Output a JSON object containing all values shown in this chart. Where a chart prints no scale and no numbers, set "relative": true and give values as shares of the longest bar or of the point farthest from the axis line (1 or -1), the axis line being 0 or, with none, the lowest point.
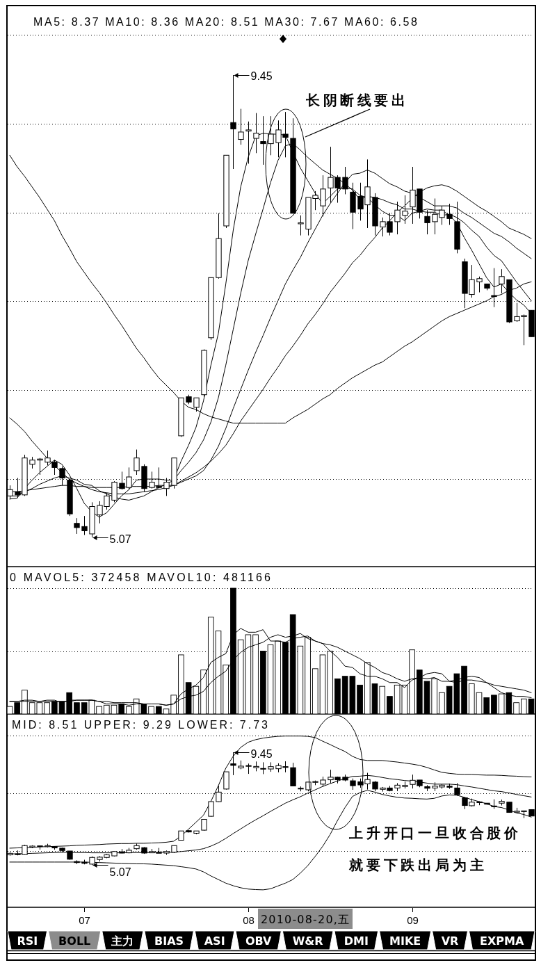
{
  "chart_data": [
    {
      "type": "candlestick",
      "title": "MA5: 8.37 MA10: 8.36 MA20: 8.51 MA30: 7.67 MA60: 6.58",
      "categories": [
        null,
        null,
        null,
        null,
        null,
        null,
        null,
        null,
        null,
        null,
        "07",
        null,
        null,
        null,
        null,
        null,
        null,
        null,
        null,
        null,
        null,
        null,
        null,
        null,
        null,
        null,
        null,
        null,
        null,
        null,
        null,
        null,
        "08",
        null,
        null,
        null,
        null,
        null,
        null,
        null,
        null,
        null,
        null,
        null,
        null,
        null,
        null,
        null,
        null,
        null,
        null,
        null,
        null,
        null,
        "09",
        null,
        null,
        null,
        null,
        null,
        null,
        null,
        null,
        null,
        null,
        null,
        null,
        null,
        null,
        null,
        null
      ],
      "ohlc": [
        [
          5.46,
          5.56,
          5.43,
          5.52
        ],
        [
          5.5,
          5.63,
          5.44,
          5.47
        ],
        [
          5.47,
          5.85,
          5.46,
          5.82
        ],
        [
          5.76,
          5.83,
          5.72,
          5.8
        ],
        [
          5.8,
          5.82,
          5.66,
          5.81
        ],
        [
          5.78,
          5.89,
          5.75,
          5.82
        ],
        [
          5.78,
          5.8,
          5.66,
          5.73
        ],
        [
          5.72,
          5.74,
          5.56,
          5.63
        ],
        [
          5.61,
          5.61,
          5.27,
          5.29
        ],
        [
          5.2,
          5.25,
          5.1,
          5.16
        ],
        [
          5.17,
          5.27,
          5.09,
          5.13
        ],
        [
          5.1,
          5.4,
          5.07,
          5.36
        ],
        [
          5.28,
          5.41,
          5.2,
          5.37
        ],
        [
          5.36,
          5.49,
          5.33,
          5.46
        ],
        [
          5.42,
          5.6,
          5.4,
          5.59
        ],
        [
          5.58,
          5.69,
          5.52,
          5.53
        ],
        [
          5.54,
          5.73,
          5.52,
          5.64
        ],
        [
          5.7,
          5.9,
          5.66,
          5.82
        ],
        [
          5.74,
          5.76,
          5.5,
          5.53
        ],
        [
          5.54,
          5.69,
          5.53,
          5.59
        ],
        [
          5.55,
          5.73,
          5.53,
          5.54
        ],
        [
          5.53,
          5.63,
          5.46,
          5.59
        ],
        [
          5.56,
          5.82,
          5.53,
          5.82
        ],
        [
          6.03,
          6.39,
          6.02,
          6.39
        ],
        [
          6.4,
          6.42,
          6.33,
          6.35
        ],
        [
          6.3,
          6.39,
          6.26,
          6.39
        ],
        [
          6.42,
          6.85,
          6.4,
          6.84
        ],
        [
          6.96,
          7.53,
          6.94,
          7.53
        ],
        [
          7.53,
          8.14,
          7.52,
          7.9
        ],
        [
          8.02,
          8.69,
          8.0,
          8.69
        ],
        [
          9.0,
          9.45,
          8.56,
          8.94
        ],
        [
          8.84,
          9.13,
          8.79,
          8.91
        ],
        [
          8.92,
          9.01,
          8.61,
          8.93
        ],
        [
          8.85,
          9.09,
          8.71,
          8.9
        ],
        [
          8.82,
          9.06,
          8.6,
          8.8
        ],
        [
          8.8,
          9.06,
          8.69,
          8.89
        ],
        [
          8.81,
          9.02,
          8.67,
          8.93
        ],
        [
          8.89,
          9.1,
          8.67,
          8.86
        ],
        [
          8.85,
          9.04,
          8.14,
          8.14
        ],
        [
          8.04,
          8.12,
          7.93,
          8.05
        ],
        [
          7.99,
          8.29,
          7.93,
          8.29
        ],
        [
          8.28,
          8.35,
          8.17,
          8.31
        ],
        [
          8.21,
          8.5,
          8.11,
          8.37
        ],
        [
          8.38,
          8.77,
          8.24,
          8.48
        ],
        [
          8.48,
          8.5,
          8.24,
          8.38
        ],
        [
          8.48,
          8.58,
          8.32,
          8.37
        ],
        [
          8.34,
          8.43,
          7.99,
          8.15
        ],
        [
          8.3,
          8.43,
          8.07,
          8.18
        ],
        [
          8.22,
          8.65,
          8.0,
          8.39
        ],
        [
          8.29,
          8.33,
          7.93,
          8.02
        ],
        [
          8.01,
          8.1,
          7.92,
          8.06
        ],
        [
          8.06,
          8.14,
          7.93,
          7.96
        ],
        [
          8.06,
          8.25,
          7.94,
          8.17
        ],
        [
          8.12,
          8.31,
          8.04,
          8.16
        ],
        [
          8.2,
          8.58,
          8.04,
          8.36
        ],
        [
          8.37,
          8.37,
          8.09,
          8.15
        ],
        [
          8.11,
          8.17,
          7.94,
          8.05
        ],
        [
          8.06,
          8.28,
          7.94,
          8.13
        ],
        [
          8.1,
          8.21,
          8.03,
          8.17
        ],
        [
          8.13,
          8.23,
          8.03,
          8.09
        ],
        [
          8.06,
          8.25,
          7.76,
          7.8
        ],
        [
          7.68,
          7.71,
          7.24,
          7.38
        ],
        [
          7.37,
          7.65,
          7.34,
          7.51
        ],
        [
          7.49,
          7.54,
          7.39,
          7.52
        ],
        [
          7.47,
          7.47,
          7.41,
          7.43
        ],
        [
          7.36,
          7.62,
          7.25,
          7.35
        ],
        [
          7.47,
          7.61,
          7.38,
          7.54
        ],
        [
          7.51,
          7.51,
          7.1,
          7.11
        ],
        [
          7.12,
          7.29,
          7.11,
          7.16
        ],
        [
          7.16,
          7.18,
          6.89,
          7.17
        ],
        [
          7.22,
          7.22,
          6.97,
          6.97
        ]
      ],
      "colors": [
        "#ffffff",
        "#000000",
        "#ffffff",
        "#ffffff",
        "#ffffff",
        "#ffffff",
        "#000000",
        "#000000",
        "#000000",
        "#000000",
        "#000000",
        "#ffffff",
        "#ffffff",
        "#ffffff",
        "#ffffff",
        "#000000",
        "#ffffff",
        "#ffffff",
        "#000000",
        "#ffffff",
        "#000000",
        "#ffffff",
        "#ffffff",
        "#ffffff",
        "#000000",
        "#ffffff",
        "#ffffff",
        "#ffffff",
        "#ffffff",
        "#ffffff",
        "#000000",
        "#ffffff",
        "#ffffff",
        "#ffffff",
        "#000000",
        "#ffffff",
        "#ffffff",
        "#000000",
        "#000000",
        "#ffffff",
        "#ffffff",
        "#ffffff",
        "#ffffff",
        "#ffffff",
        "#000000",
        "#000000",
        "#000000",
        "#000000",
        "#ffffff",
        "#000000",
        "#ffffff",
        "#000000",
        "#ffffff",
        "#ffffff",
        "#ffffff",
        "#000000",
        "#000000",
        "#ffffff",
        "#ffffff",
        "#000000",
        "#000000",
        "#000000",
        "#ffffff",
        "#ffffff",
        "#000000",
        "#000000",
        "#ffffff",
        "#000000",
        "#ffffff",
        "#ffffff",
        "#000000"
      ],
      "series": [
        {
          "type": "line",
          "color": "#000000",
          "values": [
            5.43,
            5.44,
            5.53,
            5.61,
            5.68,
            5.74,
            5.8,
            5.76,
            5.66,
            5.53,
            5.39,
            5.31,
            5.26,
            5.3,
            5.38,
            5.46,
            5.52,
            5.61,
            5.62,
            5.62,
            5.62,
            5.61,
            5.61,
            5.79,
            5.94,
            6.11,
            6.36,
            6.7,
            7.0,
            7.47,
            7.98,
            8.39,
            8.67,
            8.87,
            8.9,
            8.89,
            8.89,
            8.88,
            8.72,
            8.57,
            8.45,
            8.33,
            8.23,
            8.3,
            8.37,
            8.38,
            8.37,
            8.31,
            8.29,
            8.22,
            8.16,
            8.12,
            8.12,
            8.07,
            8.14,
            8.16,
            8.18,
            8.17,
            8.17,
            8.12,
            8.05,
            7.91,
            7.79,
            7.66,
            7.53,
            7.44,
            7.47,
            7.39,
            7.32,
            7.27,
            7.19
          ]
        },
        {
          "type": "line",
          "color": "#000000",
          "values": [
            5.46,
            5.46,
            5.5,
            5.53,
            5.57,
            5.6,
            5.63,
            5.65,
            5.63,
            5.61,
            5.57,
            5.56,
            5.51,
            5.48,
            5.45,
            5.43,
            5.42,
            5.44,
            5.46,
            5.5,
            5.54,
            5.57,
            5.61,
            5.7,
            5.78,
            5.87,
            5.99,
            6.16,
            6.39,
            6.7,
            7.04,
            7.38,
            7.69,
            7.94,
            8.18,
            8.43,
            8.64,
            8.78,
            8.8,
            8.74,
            8.67,
            8.61,
            8.55,
            8.51,
            8.47,
            8.42,
            8.36,
            8.27,
            8.3,
            8.29,
            8.27,
            8.24,
            8.22,
            8.18,
            8.18,
            8.16,
            8.15,
            8.15,
            8.12,
            8.13,
            8.1,
            8.05,
            7.98,
            7.92,
            7.82,
            7.74,
            7.69,
            7.59,
            7.49,
            7.4,
            7.31
          ]
        },
        {
          "type": "line",
          "color": "#000000",
          "values": [
            5.5,
            5.5,
            5.51,
            5.52,
            5.53,
            5.54,
            5.55,
            5.56,
            5.56,
            5.55,
            5.55,
            5.54,
            5.54,
            5.54,
            5.54,
            5.54,
            5.55,
            5.55,
            5.55,
            5.55,
            5.56,
            5.56,
            5.56,
            5.59,
            5.62,
            5.65,
            5.7,
            5.8,
            5.93,
            6.1,
            6.29,
            6.47,
            6.65,
            6.82,
            6.98,
            7.15,
            7.31,
            7.47,
            7.6,
            7.72,
            7.86,
            7.99,
            8.12,
            8.23,
            8.33,
            8.43,
            8.51,
            8.52,
            8.55,
            8.52,
            8.47,
            8.42,
            8.39,
            8.35,
            8.33,
            8.29,
            8.25,
            8.21,
            8.21,
            8.21,
            8.19,
            8.14,
            8.1,
            8.05,
            8.0,
            7.95,
            7.92,
            7.87,
            7.81,
            7.76,
            7.71
          ]
        },
        {
          "type": "line",
          "color": "#000000",
          "values": [
            6.2,
            6.14,
            6.07,
            5.98,
            5.9,
            5.82,
            5.75,
            5.68,
            5.62,
            5.58,
            5.55,
            5.52,
            5.5,
            5.49,
            5.48,
            5.48,
            5.48,
            5.49,
            5.5,
            5.51,
            5.52,
            5.54,
            5.56,
            5.6,
            5.64,
            5.68,
            5.73,
            5.79,
            5.86,
            5.94,
            6.05,
            6.17,
            6.27,
            6.37,
            6.47,
            6.58,
            6.68,
            6.79,
            6.88,
            6.98,
            7.09,
            7.18,
            7.28,
            7.39,
            7.48,
            7.57,
            7.67,
            7.74,
            7.83,
            7.91,
            8.0,
            8.07,
            8.15,
            8.21,
            8.28,
            8.34,
            8.38,
            8.4,
            8.41,
            8.39,
            8.35,
            8.3,
            8.25,
            8.2,
            8.16,
            8.11,
            8.06,
            8.0,
            7.97,
            7.94,
            7.9
          ]
        },
        {
          "type": "line",
          "color": "#000000",
          "values": [
            8.69,
            8.58,
            8.49,
            8.39,
            8.29,
            8.18,
            8.07,
            7.93,
            7.81,
            7.68,
            7.58,
            7.48,
            7.39,
            7.29,
            7.18,
            7.08,
            6.97,
            6.86,
            6.77,
            6.67,
            6.58,
            6.51,
            6.44,
            6.36,
            6.3,
            6.28,
            6.24,
            6.21,
            6.19,
            6.17,
            6.15,
            6.15,
            6.15,
            6.15,
            6.15,
            6.15,
            6.15,
            6.15,
            6.2,
            6.24,
            6.28,
            6.33,
            6.38,
            6.42,
            6.48,
            6.53,
            6.58,
            6.62,
            6.66,
            6.7,
            6.73,
            6.78,
            6.83,
            6.88,
            6.92,
            6.97,
            7.02,
            7.07,
            7.12,
            7.16,
            7.19,
            7.22,
            7.25,
            7.28,
            7.31,
            7.35,
            7.37,
            7.41,
            7.43,
            7.47,
            7.49
          ]
        }
      ],
      "grid": "y",
      "tick_labels": false,
      "annotations": [
        "9.45",
        "5.07",
        "长阴断线要出"
      ]
    },
    {
      "type": "bar",
      "title": "0 MAVOL5: 372458 MAVOL10: 481166",
      "relative": true,
      "categories": [
        null,
        null,
        null,
        null,
        null,
        null,
        null,
        null,
        null,
        null,
        "07",
        null,
        null,
        null,
        null,
        null,
        null,
        null,
        null,
        null,
        null,
        null,
        null,
        null,
        null,
        null,
        null,
        null,
        null,
        null,
        null,
        null,
        "08",
        null,
        null,
        null,
        null,
        null,
        null,
        null,
        null,
        null,
        null,
        null,
        null,
        null,
        null,
        null,
        null,
        null,
        null,
        null,
        null,
        null,
        "09",
        null,
        null,
        null,
        null,
        null,
        null,
        null,
        null,
        null,
        null,
        null,
        null,
        null,
        null,
        null,
        null
      ],
      "series": [
        {
          "values": [
            0.06,
            0.09,
            0.19,
            0.09,
            0.09,
            0.09,
            0.1,
            0.1,
            0.17,
            0.09,
            0.09,
            0.11,
            0.06,
            0.07,
            0.07,
            0.08,
            0.06,
            0.12,
            0.08,
            0.06,
            0.06,
            0.04,
            0.15,
            0.47,
            0.25,
            0.22,
            0.35,
            0.77,
            0.66,
            0.39,
            1,
            0.59,
            0.63,
            0.63,
            0.5,
            0.55,
            0.58,
            0.57,
            0.79,
            0.54,
            0.61,
            0.36,
            0.47,
            0.5,
            0.28,
            0.3,
            0.3,
            0.23,
            0.41,
            0.24,
            0.22,
            0.14,
            0.23,
            0.23,
            0.51,
            0.35,
            0.26,
            0.28,
            0.17,
            0.22,
            0.32,
            0.38,
            0.24,
            0.17,
            0.13,
            0.15,
            0.16,
            0.17,
            0.09,
            0.12,
            0.12
          ],
          "colors": [
            "#ffffff",
            "#000000",
            "#ffffff",
            "#ffffff",
            "#ffffff",
            "#ffffff",
            "#000000",
            "#000000",
            "#000000",
            "#000000",
            "#000000",
            "#ffffff",
            "#ffffff",
            "#ffffff",
            "#ffffff",
            "#000000",
            "#ffffff",
            "#ffffff",
            "#000000",
            "#ffffff",
            "#000000",
            "#ffffff",
            "#ffffff",
            "#ffffff",
            "#000000",
            "#ffffff",
            "#ffffff",
            "#ffffff",
            "#ffffff",
            "#ffffff",
            "#000000",
            "#ffffff",
            "#ffffff",
            "#ffffff",
            "#000000",
            "#ffffff",
            "#ffffff",
            "#000000",
            "#000000",
            "#ffffff",
            "#ffffff",
            "#ffffff",
            "#ffffff",
            "#ffffff",
            "#000000",
            "#000000",
            "#000000",
            "#000000",
            "#ffffff",
            "#000000",
            "#ffffff",
            "#000000",
            "#ffffff",
            "#ffffff",
            "#ffffff",
            "#000000",
            "#000000",
            "#ffffff",
            "#ffffff",
            "#000000",
            "#000000",
            "#000000",
            "#ffffff",
            "#ffffff",
            "#000000",
            "#000000",
            "#ffffff",
            "#000000",
            "#ffffff",
            "#ffffff",
            "#000000"
          ]
        },
        {
          "type": "line",
          "color": "#000000",
          "values": [
            0.1,
            0.1,
            0.11,
            0.11,
            0.1,
            0.11,
            0.11,
            0.09,
            0.11,
            0.11,
            0.11,
            0.11,
            0.1,
            0.08,
            0.08,
            0.08,
            0.07,
            0.08,
            0.08,
            0.08,
            0.08,
            0.07,
            0.08,
            0.16,
            0.2,
            0.23,
            0.29,
            0.41,
            0.45,
            0.48,
            0.63,
            0.68,
            0.65,
            0.65,
            0.67,
            0.58,
            0.58,
            0.57,
            0.6,
            0.61,
            0.62,
            0.58,
            0.56,
            0.5,
            0.45,
            0.38,
            0.37,
            0.32,
            0.3,
            0.3,
            0.28,
            0.25,
            0.25,
            0.21,
            0.27,
            0.29,
            0.32,
            0.33,
            0.32,
            0.26,
            0.25,
            0.27,
            0.27,
            0.26,
            0.25,
            0.21,
            0.17,
            0.15,
            0.14,
            0.14,
            0.13
          ]
        },
        {
          "type": "line",
          "color": "#000000",
          "values": [
            0.1,
            0.1,
            0.1,
            0.1,
            0.1,
            0.1,
            0.1,
            0.1,
            0.1,
            0.11,
            0.11,
            0.11,
            0.1,
            0.1,
            0.09,
            0.09,
            0.09,
            0.09,
            0.08,
            0.08,
            0.08,
            0.07,
            0.08,
            0.12,
            0.14,
            0.15,
            0.18,
            0.25,
            0.3,
            0.34,
            0.43,
            0.49,
            0.53,
            0.55,
            0.57,
            0.61,
            0.63,
            0.61,
            0.62,
            0.64,
            0.6,
            0.58,
            0.56,
            0.55,
            0.53,
            0.5,
            0.47,
            0.44,
            0.4,
            0.37,
            0.33,
            0.31,
            0.28,
            0.26,
            0.28,
            0.29,
            0.28,
            0.29,
            0.26,
            0.26,
            0.27,
            0.29,
            0.3,
            0.29,
            0.25,
            0.23,
            0.22,
            0.21,
            0.2,
            0.19,
            0.17
          ]
        }
      ],
      "ref_lines": [
        {
          "axis": "y",
          "value": 1,
          "line_style": "dotted"
        },
        {
          "axis": "y",
          "value": 0.5,
          "line_style": "dotted"
        }
      ],
      "tick_labels": false
    },
    {
      "type": "candlestick",
      "title": "MID: 8.51 UPPER: 9.29 LOWER: 7.73",
      "categories": [
        null,
        null,
        null,
        null,
        null,
        null,
        null,
        null,
        null,
        null,
        "07",
        null,
        null,
        null,
        null,
        null,
        null,
        null,
        null,
        null,
        null,
        null,
        null,
        null,
        null,
        null,
        null,
        null,
        null,
        null,
        null,
        null,
        "08",
        null,
        null,
        null,
        null,
        null,
        null,
        null,
        null,
        null,
        null,
        null,
        null,
        null,
        null,
        null,
        null,
        null,
        null,
        null,
        null,
        null,
        "09",
        null,
        null,
        null,
        null,
        null,
        null,
        null,
        null,
        null,
        null,
        null,
        null,
        null,
        null,
        null,
        null
      ],
      "ohlc": [
        [
          5.46,
          5.56,
          5.43,
          5.52
        ],
        [
          5.5,
          5.63,
          5.44,
          5.47
        ],
        [
          5.47,
          5.85,
          5.46,
          5.82
        ],
        [
          5.76,
          5.83,
          5.72,
          5.8
        ],
        [
          5.8,
          5.82,
          5.66,
          5.81
        ],
        [
          5.78,
          5.89,
          5.75,
          5.82
        ],
        [
          5.78,
          5.8,
          5.66,
          5.73
        ],
        [
          5.72,
          5.74,
          5.56,
          5.63
        ],
        [
          5.61,
          5.61,
          5.27,
          5.29
        ],
        [
          5.2,
          5.25,
          5.1,
          5.16
        ],
        [
          5.17,
          5.27,
          5.09,
          5.13
        ],
        [
          5.1,
          5.4,
          5.07,
          5.36
        ],
        [
          5.28,
          5.41,
          5.2,
          5.37
        ],
        [
          5.36,
          5.49,
          5.33,
          5.46
        ],
        [
          5.42,
          5.6,
          5.4,
          5.59
        ],
        [
          5.58,
          5.69,
          5.52,
          5.53
        ],
        [
          5.54,
          5.73,
          5.52,
          5.64
        ],
        [
          5.7,
          5.9,
          5.66,
          5.82
        ],
        [
          5.74,
          5.76,
          5.5,
          5.53
        ],
        [
          5.54,
          5.69,
          5.53,
          5.59
        ],
        [
          5.55,
          5.73,
          5.53,
          5.54
        ],
        [
          5.53,
          5.63,
          5.46,
          5.59
        ],
        [
          5.56,
          5.82,
          5.53,
          5.82
        ],
        [
          6.03,
          6.39,
          6.02,
          6.39
        ],
        [
          6.4,
          6.42,
          6.33,
          6.35
        ],
        [
          6.3,
          6.39,
          6.26,
          6.39
        ],
        [
          6.42,
          6.85,
          6.4,
          6.84
        ],
        [
          6.96,
          7.53,
          6.94,
          7.53
        ],
        [
          7.53,
          8.14,
          7.52,
          7.9
        ],
        [
          8.02,
          8.69,
          8.0,
          8.69
        ],
        [
          9.0,
          9.45,
          8.56,
          8.94
        ],
        [
          8.84,
          9.13,
          8.79,
          8.91
        ],
        [
          8.92,
          9.01,
          8.61,
          8.93
        ],
        [
          8.85,
          9.09,
          8.71,
          8.9
        ],
        [
          8.82,
          9.06,
          8.6,
          8.8
        ],
        [
          8.8,
          9.06,
          8.69,
          8.89
        ],
        [
          8.81,
          9.02,
          8.67,
          8.93
        ],
        [
          8.89,
          9.1,
          8.67,
          8.86
        ],
        [
          8.85,
          9.04,
          8.14,
          8.14
        ],
        [
          8.04,
          8.12,
          7.93,
          8.05
        ],
        [
          7.99,
          8.29,
          7.93,
          8.29
        ],
        [
          8.28,
          8.35,
          8.17,
          8.31
        ],
        [
          8.21,
          8.5,
          8.11,
          8.37
        ],
        [
          8.38,
          8.77,
          8.24,
          8.48
        ],
        [
          8.48,
          8.5,
          8.24,
          8.38
        ],
        [
          8.48,
          8.58,
          8.32,
          8.37
        ],
        [
          8.34,
          8.43,
          7.99,
          8.15
        ],
        [
          8.3,
          8.43,
          8.07,
          8.18
        ],
        [
          8.22,
          8.65,
          8.0,
          8.39
        ],
        [
          8.29,
          8.33,
          7.93,
          8.02
        ],
        [
          8.01,
          8.1,
          7.92,
          8.06
        ],
        [
          8.06,
          8.14,
          7.93,
          7.96
        ],
        [
          8.06,
          8.25,
          7.94,
          8.17
        ],
        [
          8.12,
          8.31,
          8.04,
          8.16
        ],
        [
          8.2,
          8.58,
          8.04,
          8.36
        ],
        [
          8.37,
          8.37,
          8.09,
          8.15
        ],
        [
          8.11,
          8.17,
          7.94,
          8.05
        ],
        [
          8.06,
          8.28,
          7.94,
          8.13
        ],
        [
          8.1,
          8.21,
          8.03,
          8.17
        ],
        [
          8.13,
          8.23,
          8.03,
          8.09
        ],
        [
          8.06,
          8.25,
          7.76,
          7.8
        ],
        [
          7.68,
          7.71,
          7.24,
          7.38
        ],
        [
          7.37,
          7.65,
          7.34,
          7.51
        ],
        [
          7.49,
          7.54,
          7.39,
          7.52
        ],
        [
          7.47,
          7.47,
          7.41,
          7.43
        ],
        [
          7.36,
          7.62,
          7.25,
          7.35
        ],
        [
          7.47,
          7.61,
          7.38,
          7.54
        ],
        [
          7.51,
          7.51,
          7.1,
          7.11
        ],
        [
          7.12,
          7.29,
          7.11,
          7.16
        ],
        [
          7.16,
          7.18,
          6.89,
          7.17
        ],
        [
          7.22,
          7.22,
          6.97,
          6.97
        ]
      ],
      "colors": [
        "#ffffff",
        "#000000",
        "#ffffff",
        "#ffffff",
        "#ffffff",
        "#ffffff",
        "#000000",
        "#000000",
        "#000000",
        "#000000",
        "#000000",
        "#ffffff",
        "#ffffff",
        "#ffffff",
        "#ffffff",
        "#000000",
        "#ffffff",
        "#ffffff",
        "#000000",
        "#ffffff",
        "#000000",
        "#ffffff",
        "#ffffff",
        "#ffffff",
        "#000000",
        "#ffffff",
        "#ffffff",
        "#ffffff",
        "#ffffff",
        "#ffffff",
        "#000000",
        "#ffffff",
        "#ffffff",
        "#ffffff",
        "#000000",
        "#ffffff",
        "#ffffff",
        "#000000",
        "#000000",
        "#ffffff",
        "#ffffff",
        "#ffffff",
        "#ffffff",
        "#ffffff",
        "#000000",
        "#000000",
        "#000000",
        "#000000",
        "#ffffff",
        "#000000",
        "#ffffff",
        "#000000",
        "#ffffff",
        "#ffffff",
        "#ffffff",
        "#000000",
        "#000000",
        "#ffffff",
        "#ffffff",
        "#000000",
        "#000000",
        "#000000",
        "#ffffff",
        "#ffffff",
        "#000000",
        "#000000",
        "#ffffff",
        "#000000",
        "#ffffff",
        "#ffffff",
        "#000000"
      ],
      "series": [
        {
          "type": "line",
          "color": "#000000",
          "values": [
            5.5,
            5.5,
            5.51,
            5.52,
            5.53,
            5.54,
            5.55,
            5.56,
            5.56,
            5.55,
            5.55,
            5.54,
            5.54,
            5.54,
            5.54,
            5.54,
            5.55,
            5.55,
            5.55,
            5.55,
            5.56,
            5.56,
            5.56,
            5.59,
            5.62,
            5.65,
            5.7,
            5.8,
            5.93,
            6.1,
            6.29,
            6.47,
            6.65,
            6.82,
            6.98,
            7.15,
            7.31,
            7.47,
            7.6,
            7.72,
            7.86,
            7.99,
            8.12,
            8.23,
            8.33,
            8.43,
            8.51,
            8.52,
            8.55,
            8.52,
            8.47,
            8.42,
            8.39,
            8.35,
            8.33,
            8.29,
            8.25,
            8.21,
            8.21,
            8.21,
            8.19,
            8.14,
            8.1,
            8.05,
            8.0,
            7.95,
            7.92,
            7.87,
            7.81,
            7.76,
            7.71
          ]
        },
        {
          "type": "line",
          "color": "#000000",
          "values": [
            5.72,
            5.73,
            5.74,
            5.75,
            5.77,
            5.78,
            5.79,
            5.8,
            5.81,
            5.83,
            5.84,
            5.85,
            5.86,
            5.88,
            5.89,
            5.9,
            5.9,
            5.91,
            5.91,
            5.92,
            5.93,
            5.95,
            5.99,
            6.19,
            6.46,
            6.73,
            7.0,
            7.54,
            8.15,
            8.83,
            9.3,
            9.64,
            9.84,
            9.94,
            10.0,
            10.04,
            10.07,
            10.08,
            10.08,
            10.08,
            10.07,
            10.02,
            9.88,
            9.75,
            9.61,
            9.48,
            9.29,
            9.17,
            9.13,
            9.13,
            9.13,
            9.1,
            9.07,
            9.03,
            8.99,
            8.94,
            8.86,
            8.76,
            8.67,
            8.63,
            8.6,
            8.59,
            8.59,
            8.57,
            8.56,
            8.56,
            8.55,
            8.53,
            8.52,
            8.5,
            8.49
          ]
        },
        {
          "type": "line",
          "color": "#000000",
          "values": [
            5.18,
            5.18,
            5.18,
            5.18,
            5.18,
            5.18,
            5.18,
            5.18,
            5.18,
            5.18,
            5.18,
            5.17,
            5.16,
            5.15,
            5.14,
            5.13,
            5.12,
            5.11,
            5.11,
            5.1,
            5.08,
            5.06,
            5.04,
            5.0,
            4.96,
            4.91,
            4.8,
            4.64,
            4.5,
            4.36,
            4.26,
            4.18,
            4.13,
            4.11,
            4.1,
            4.14,
            4.25,
            4.36,
            4.5,
            4.75,
            5.04,
            5.4,
            5.79,
            6.25,
            6.8,
            7.3,
            7.73,
            7.88,
            7.97,
            7.9,
            7.81,
            7.75,
            7.7,
            7.67,
            7.66,
            7.64,
            7.63,
            7.66,
            7.75,
            7.79,
            7.78,
            7.7,
            7.61,
            7.53,
            7.45,
            7.34,
            7.3,
            7.21,
            7.09,
            7.03,
            6.93
          ]
        }
      ],
      "ref_lines": [
        {
          "axis": "y",
          "value": 10.1,
          "line_style": "dotted"
        },
        {
          "axis": "y",
          "value": 7.86,
          "line_style": "dotted"
        },
        {
          "axis": "y",
          "value": 5.61,
          "line_style": "dotted"
        }
      ],
      "tick_labels": "x",
      "annotations": [
        "9.45",
        "5.07",
        "上升开口一旦收合股价",
        "就要下跌出局为主",
        "2010-08-20,五"
      ]
    },
    {
      "type": "other",
      "annotations": [
        "RSI",
        "BOLL",
        "主力",
        "BIAS",
        "ASI",
        "OBV",
        "W&R",
        "DMI",
        "MIKE",
        "VR",
        "EXPMA"
      ],
      "colors": [
        "#000000",
        "#8c8c8c",
        "#000000",
        "#000000",
        "#000000",
        "#000000",
        "#000000",
        "#000000",
        "#000000",
        "#000000",
        "#000000"
      ]
    }
  ]
}
